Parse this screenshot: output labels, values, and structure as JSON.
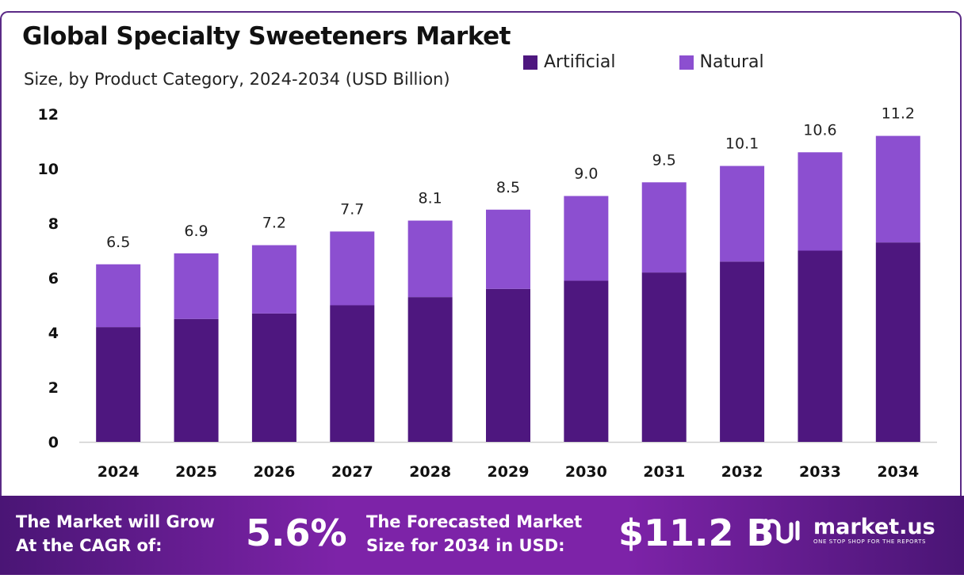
{
  "colors": {
    "artificial": "#4e177f",
    "natural": "#8c4fd0",
    "footer": "#7d23a8"
  },
  "chart_data": {
    "type": "bar",
    "stacked": true,
    "title": "Global Specialty Sweeteners Market",
    "subtitle": "Size, by Product Category, 2024-2034 (USD Billion)",
    "categories": [
      "2024",
      "2025",
      "2026",
      "2027",
      "2028",
      "2029",
      "2030",
      "2031",
      "2032",
      "2033",
      "2034"
    ],
    "series": [
      {
        "name": "Artificial",
        "values": [
          4.2,
          4.5,
          4.7,
          5.0,
          5.3,
          5.6,
          5.9,
          6.2,
          6.6,
          7.0,
          7.3
        ]
      },
      {
        "name": "Natural",
        "values": [
          2.3,
          2.4,
          2.5,
          2.7,
          2.8,
          2.9,
          3.1,
          3.3,
          3.5,
          3.6,
          3.9
        ]
      }
    ],
    "totals": [
      6.5,
      6.9,
      7.2,
      7.7,
      8.1,
      8.5,
      9.0,
      9.5,
      10.1,
      10.6,
      11.2
    ],
    "total_labels": [
      "6.5",
      "6.9",
      "7.2",
      "7.7",
      "8.1",
      "8.5",
      "9.0",
      "9.5",
      "10.1",
      "10.6",
      "11.2"
    ],
    "yticks": [
      0,
      2,
      4,
      6,
      8,
      10,
      12
    ],
    "ylim": [
      0,
      12
    ],
    "grid": false,
    "legend": "top-right"
  },
  "footer": {
    "cagr_label": "The Market will Grow\nAt the CAGR of:",
    "cagr_value": "5.6%",
    "forecast_label": "The Forecasted Market\nSize for 2034 in USD:",
    "forecast_value": "$11.2 B",
    "brand": "market.us",
    "tagline": "ONE STOP SHOP FOR THE REPORTS"
  }
}
